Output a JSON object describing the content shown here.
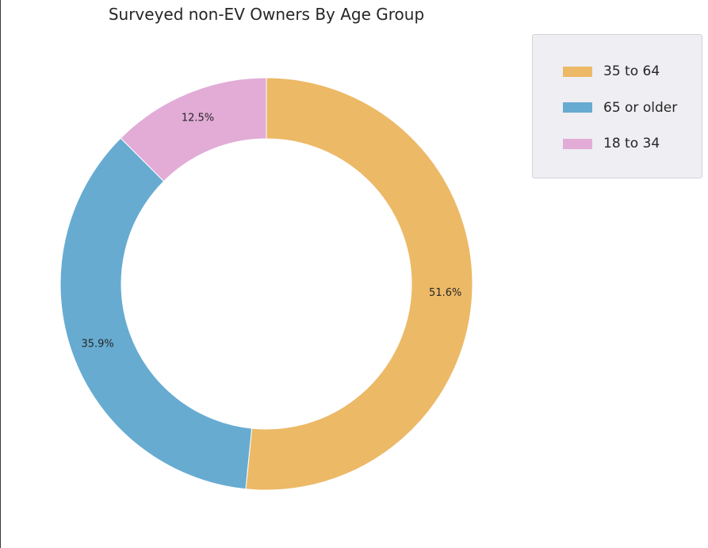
{
  "chart_data": {
    "type": "pie",
    "variant": "donut",
    "title": "Surveyed non-EV Owners By Age Group",
    "slices": [
      {
        "label": "35 to 64",
        "value": 51.6,
        "display": "51.6%",
        "color": "#ecb967"
      },
      {
        "label": "65 or older",
        "value": 35.9,
        "display": "35.9%",
        "color": "#67abd1"
      },
      {
        "label": "18 to 34",
        "value": 12.5,
        "display": "12.5%",
        "color": "#e2acd7"
      }
    ],
    "start_angle_deg": 90,
    "direction": "clockwise",
    "legend": {
      "placement": "upper-right-outside",
      "entries": [
        "35 to 64",
        "65 or older",
        "18 to 34"
      ]
    }
  }
}
